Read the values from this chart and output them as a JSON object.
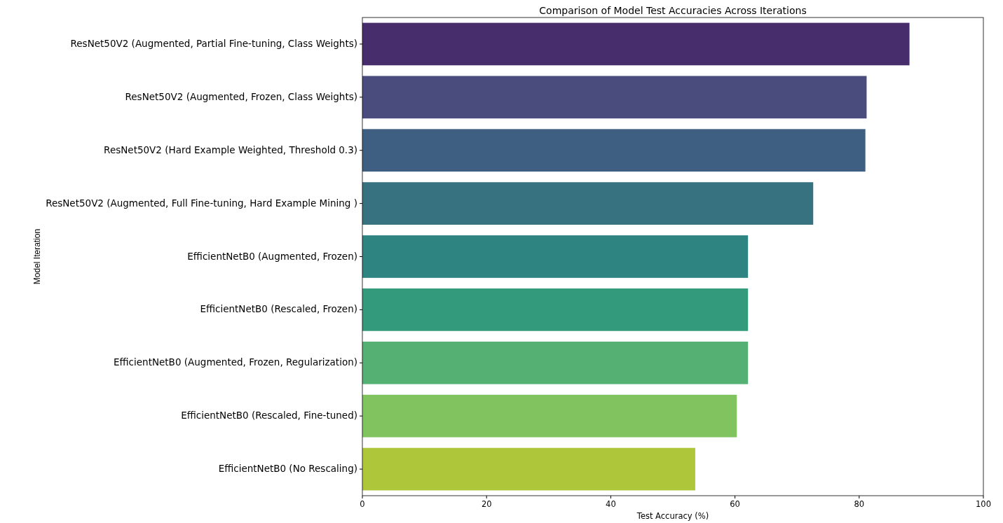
{
  "chart_data": {
    "type": "bar",
    "orientation": "horizontal",
    "title": "Comparison of Model Test Accuracies Across Iterations",
    "xlabel": "Test Accuracy (%)",
    "ylabel": "Model Iteration",
    "categories": [
      "ResNet50V2 (Augmented, Partial Fine-tuning, Class Weights)",
      "ResNet50V2 (Augmented, Frozen, Class Weights)",
      "ResNet50V2 (Hard Example Weighted, Threshold 0.3)",
      "ResNet50V2 (Augmented, Full Fine-tuning, Hard Example Mining )",
      "EfficientNetB0 (Augmented, Frozen)",
      "EfficientNetB0 (Rescaled, Frozen)",
      "EfficientNetB0 (Augmented, Frozen, Regularization)",
      "EfficientNetB0 (Rescaled, Fine-tuned)",
      "EfficientNetB0 (No Rescaling)"
    ],
    "values": [
      88.1,
      81.2,
      81.0,
      72.6,
      62.1,
      62.1,
      62.1,
      60.3,
      53.6
    ],
    "colors": [
      "#482d6c",
      "#4a4c7e",
      "#3f5f82",
      "#36727f",
      "#2e8480",
      "#349a7c",
      "#54b073",
      "#80c35f",
      "#aec639"
    ],
    "xlim": [
      0,
      100
    ],
    "xticks": [
      0,
      20,
      40,
      60,
      80,
      100
    ],
    "grid": false
  }
}
